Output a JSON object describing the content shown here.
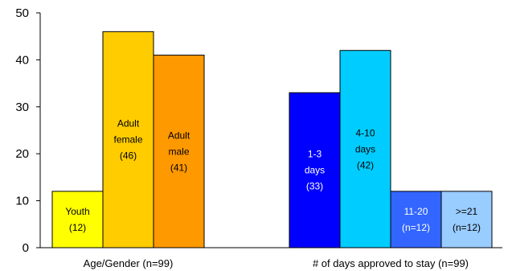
{
  "chart_data": {
    "type": "bar",
    "title": "",
    "xlabel": "",
    "ylabel": "",
    "ylim": [
      0,
      50
    ],
    "yticks": [
      0,
      10,
      20,
      30,
      40,
      50
    ],
    "grid": false,
    "groups": [
      {
        "label": "Age/Gender (n=99)",
        "bars": [
          {
            "lines": [
              "Youth",
              "(12)"
            ],
            "value": 12,
            "color": "#FFFF00",
            "text_color": "#000000"
          },
          {
            "lines": [
              "Adult",
              "female",
              "(46)"
            ],
            "value": 46,
            "color": "#FFCC00",
            "text_color": "#000000"
          },
          {
            "lines": [
              "Adult",
              "male",
              "(41)"
            ],
            "value": 41,
            "color": "#FF9900",
            "text_color": "#000000"
          }
        ]
      },
      {
        "label": "# of days approved to stay (n=99)",
        "bars": [
          {
            "lines": [
              "1-3",
              "days",
              "(33)"
            ],
            "value": 33,
            "color": "#0000FF",
            "text_color": "#FFFFFF"
          },
          {
            "lines": [
              "4-10",
              "days",
              "(42)"
            ],
            "value": 42,
            "color": "#00CCFF",
            "text_color": "#000000"
          },
          {
            "lines": [
              "11-20",
              "(n=12)"
            ],
            "value": 12,
            "color": "#3366FF",
            "text_color": "#FFFFFF"
          },
          {
            "lines": [
              ">=21",
              "(n=12)"
            ],
            "value": 12,
            "color": "#99CCFF",
            "text_color": "#000000"
          }
        ]
      }
    ]
  }
}
